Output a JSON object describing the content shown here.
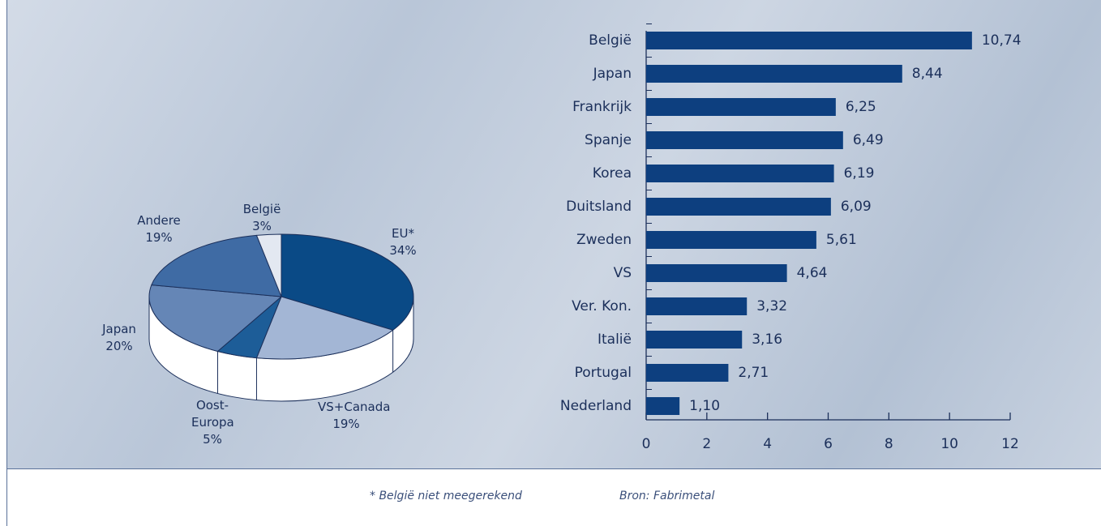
{
  "chart_data": [
    {
      "type": "pie",
      "categories": [
        "EU*",
        "VS+Canada",
        "Oost-Europa",
        "Japan",
        "Andere",
        "België"
      ],
      "values": [
        34,
        19,
        5,
        20,
        19,
        3
      ],
      "value_labels": [
        "34%",
        "19%",
        "5%",
        "20%",
        "19%",
        "3%"
      ],
      "colors": [
        "#0a4a86",
        "#a3b6d5",
        "#1d5d98",
        "#6586b6",
        "#3f6ba4",
        "#e3e8f1"
      ]
    },
    {
      "type": "hbar",
      "categories": [
        "België",
        "Japan",
        "Frankrijk",
        "Spanje",
        "Korea",
        "Duitsland",
        "Zweden",
        "VS",
        "Ver. Kon.",
        "Italië",
        "Portugal",
        "Nederland"
      ],
      "values": [
        10.74,
        8.44,
        6.25,
        6.49,
        6.19,
        6.09,
        5.61,
        4.64,
        3.32,
        3.16,
        2.71,
        1.1
      ],
      "value_labels": [
        "10,74",
        "8,44",
        "6,25",
        "6,49",
        "6,19",
        "6,09",
        "5,61",
        "4,64",
        "3,32",
        "3,16",
        "2,71",
        "1,10"
      ],
      "color": "#0d3f7f",
      "xlim": [
        0,
        12
      ],
      "xticks": [
        0,
        2,
        4,
        6,
        8,
        10,
        12
      ]
    }
  ],
  "footnotes": [
    "* België niet meegerekend",
    "Bron: Fabrimetal"
  ]
}
